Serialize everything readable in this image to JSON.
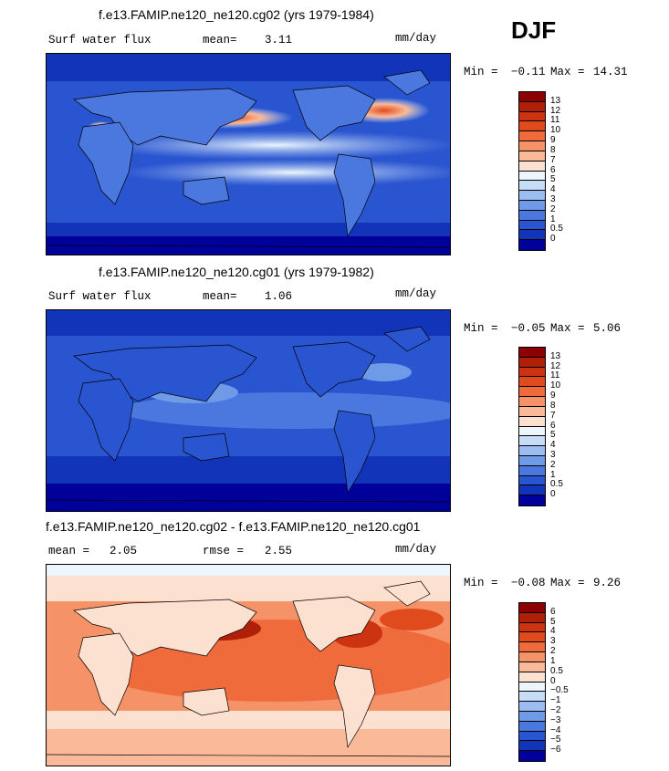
{
  "season": "DJF",
  "panels": [
    {
      "title": "f.e13.FAMIP.ne120_ne120.cg02 (yrs 1979-1984)",
      "left_label": "Surf water flux",
      "mean_label": "mean=",
      "mean_value": "3.11",
      "units": "mm/day",
      "min_label": "Min =",
      "min_value": "−0.11",
      "max_label": "Max =",
      "max_value": "14.31",
      "colorbar": {
        "labels": [
          "13",
          "12",
          "11",
          "10",
          "9",
          "8",
          "7",
          "6",
          "5",
          "4",
          "3",
          "2",
          "1",
          "0.5",
          "0"
        ],
        "colors": [
          "#8b0000",
          "#b01f08",
          "#cc3311",
          "#e04b1e",
          "#ef6b3c",
          "#f69267",
          "#fab998",
          "#fde1d0",
          "#eef6fd",
          "#c7dcf6",
          "#9cbdf1",
          "#6f9ae8",
          "#4a78df",
          "#2a55d0",
          "#1234b8",
          "#00009a"
        ]
      }
    },
    {
      "title": "f.e13.FAMIP.ne120_ne120.cg01 (yrs 1979-1982)",
      "left_label": "Surf water flux",
      "mean_label": "mean=",
      "mean_value": "1.06",
      "units": "mm/day",
      "min_label": "Min =",
      "min_value": "−0.05",
      "max_label": "Max =",
      "max_value": "5.06",
      "colorbar": {
        "labels": [
          "13",
          "12",
          "11",
          "10",
          "9",
          "8",
          "7",
          "6",
          "5",
          "4",
          "3",
          "2",
          "1",
          "0.5",
          "0"
        ],
        "colors": [
          "#8b0000",
          "#b01f08",
          "#cc3311",
          "#e04b1e",
          "#ef6b3c",
          "#f69267",
          "#fab998",
          "#fde1d0",
          "#eef6fd",
          "#c7dcf6",
          "#9cbdf1",
          "#6f9ae8",
          "#4a78df",
          "#2a55d0",
          "#1234b8",
          "#00009a"
        ]
      }
    },
    {
      "title": "f.e13.FAMIP.ne120_ne120.cg02 - f.e13.FAMIP.ne120_ne120.cg01",
      "left_label": "mean =",
      "left_value": "2.05",
      "mean_label": "rmse =",
      "mean_value": "2.55",
      "units": "mm/day",
      "min_label": "Min =",
      "min_value": "−0.08",
      "max_label": "Max =",
      "max_value": "9.26",
      "colorbar": {
        "labels": [
          "6",
          "5",
          "4",
          "3",
          "2",
          "1",
          "0.5",
          "0",
          "−0.5",
          "−1",
          "−2",
          "−3",
          "−4",
          "−5",
          "−6"
        ],
        "colors": [
          "#8b0000",
          "#b01f08",
          "#cc3311",
          "#e04b1e",
          "#ef6b3c",
          "#f69267",
          "#fab998",
          "#fde1d0",
          "#eef6fd",
          "#c7dcf6",
          "#9cbdf1",
          "#6f9ae8",
          "#4a78df",
          "#2a55d0",
          "#1234b8",
          "#00009a"
        ]
      }
    }
  ]
}
